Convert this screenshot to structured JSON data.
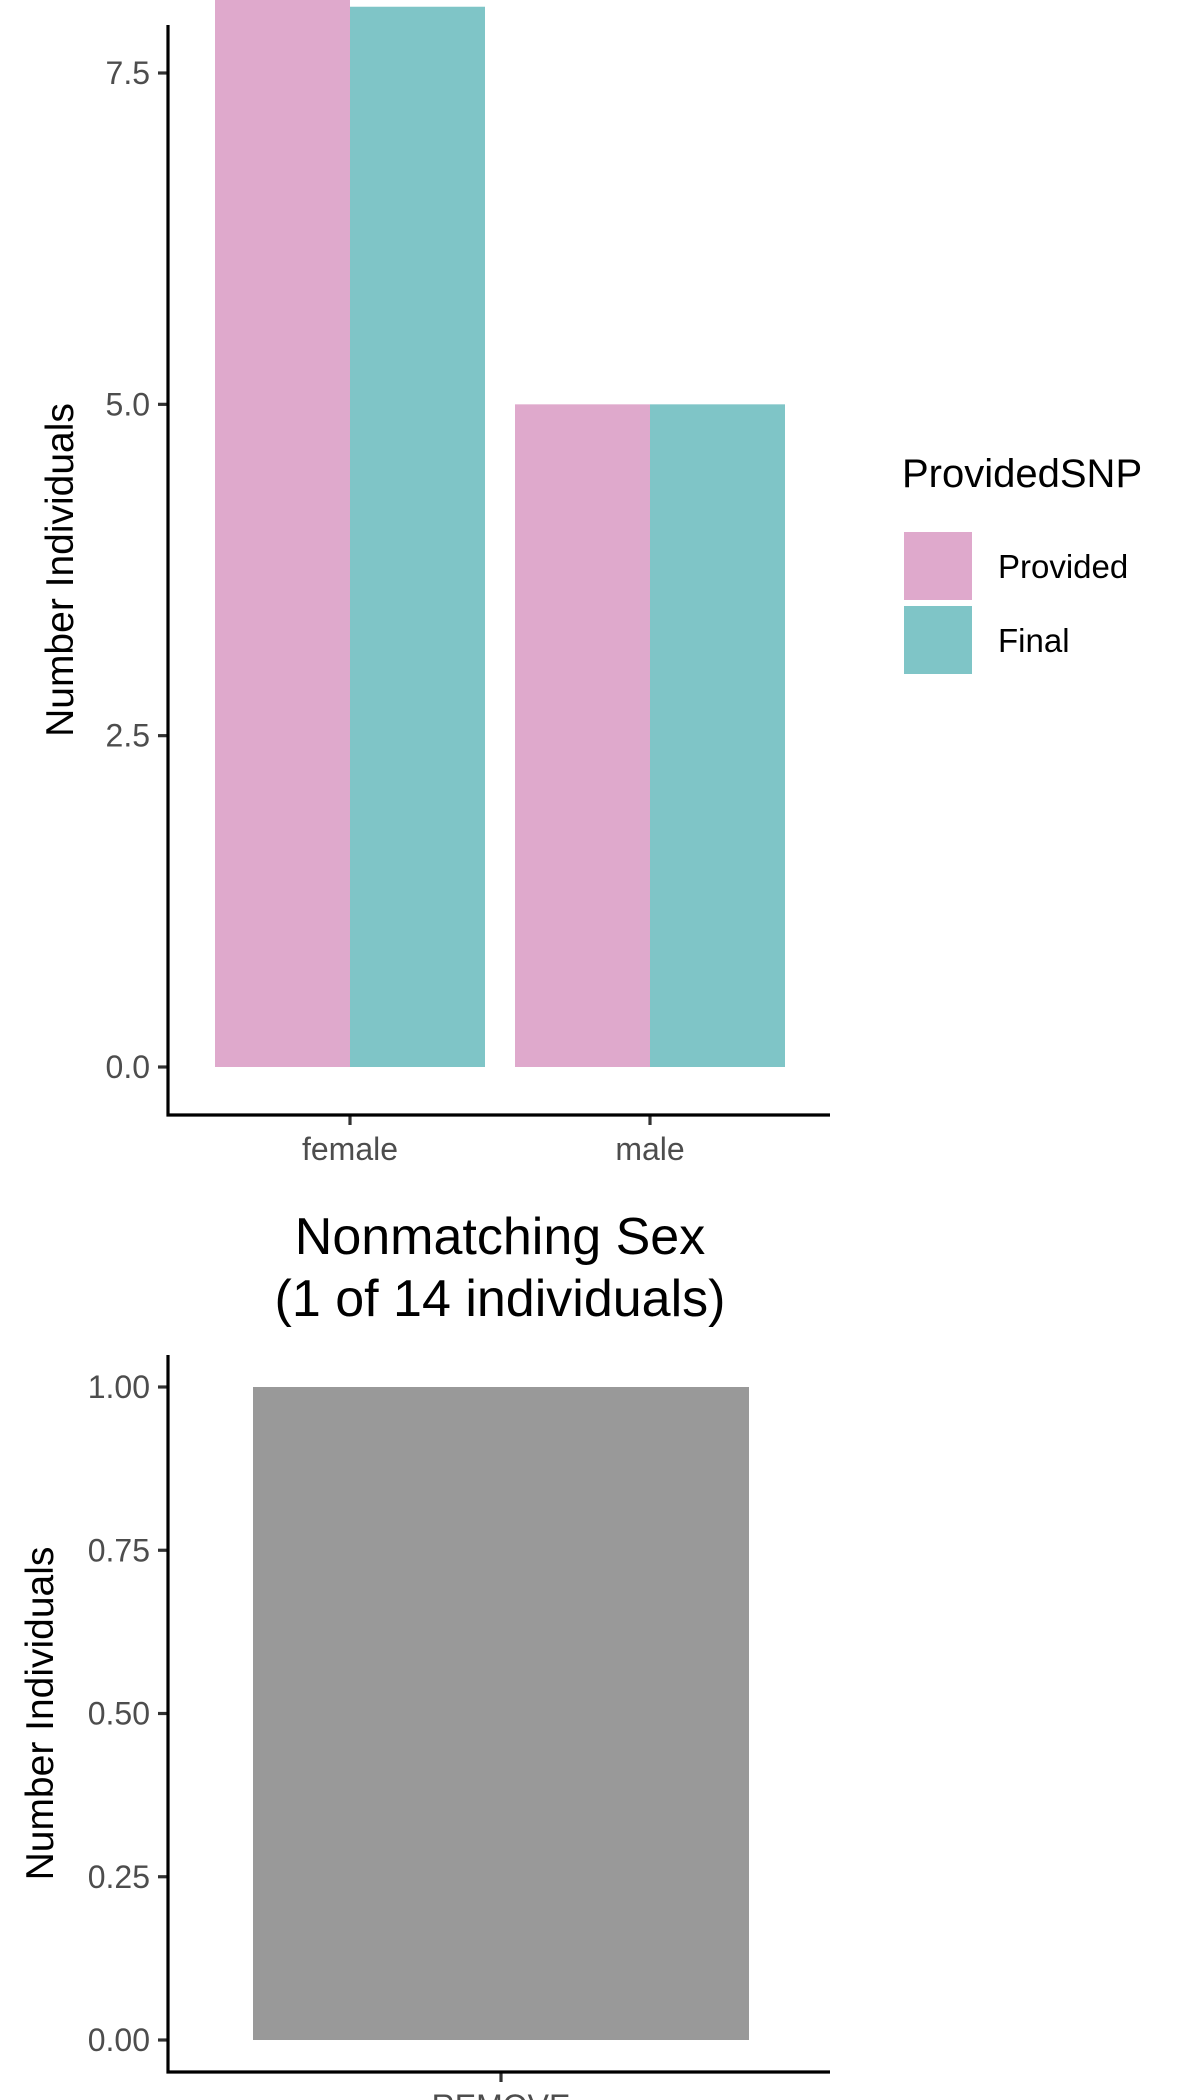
{
  "chart_data": [
    {
      "type": "bar",
      "title": "",
      "xlabel": "",
      "ylabel": "Number Individuals",
      "categories": [
        "female",
        "male"
      ],
      "series": [
        {
          "name": "Provided",
          "values": [
            9,
            5
          ],
          "color": "#DFA9CC"
        },
        {
          "name": "Final",
          "values": [
            8,
            5
          ],
          "color": "#7FC5C7"
        }
      ],
      "ylim": [
        0,
        9.4
      ],
      "yticks": [
        0,
        2.5,
        5,
        7.5
      ],
      "ytick_labels": [
        "0.0",
        "2.5",
        "5.0",
        "7.5"
      ],
      "legend": {
        "title": "ProvidedSNP",
        "position": "right"
      },
      "grid": false
    },
    {
      "type": "bar",
      "title": "Nonmatching Sex\n(1 of 14 individuals)",
      "xlabel": "",
      "ylabel": "Number Individuals",
      "categories": [
        "REMOVE"
      ],
      "series": [
        {
          "values": [
            1
          ],
          "color": "#999999"
        }
      ],
      "ylim": [
        0,
        1.05
      ],
      "yticks": [
        0,
        0.25,
        0.5,
        0.75,
        1
      ],
      "ytick_labels": [
        "0.00",
        "0.25",
        "0.50",
        "0.75",
        "1.00"
      ],
      "grid": false
    }
  ]
}
